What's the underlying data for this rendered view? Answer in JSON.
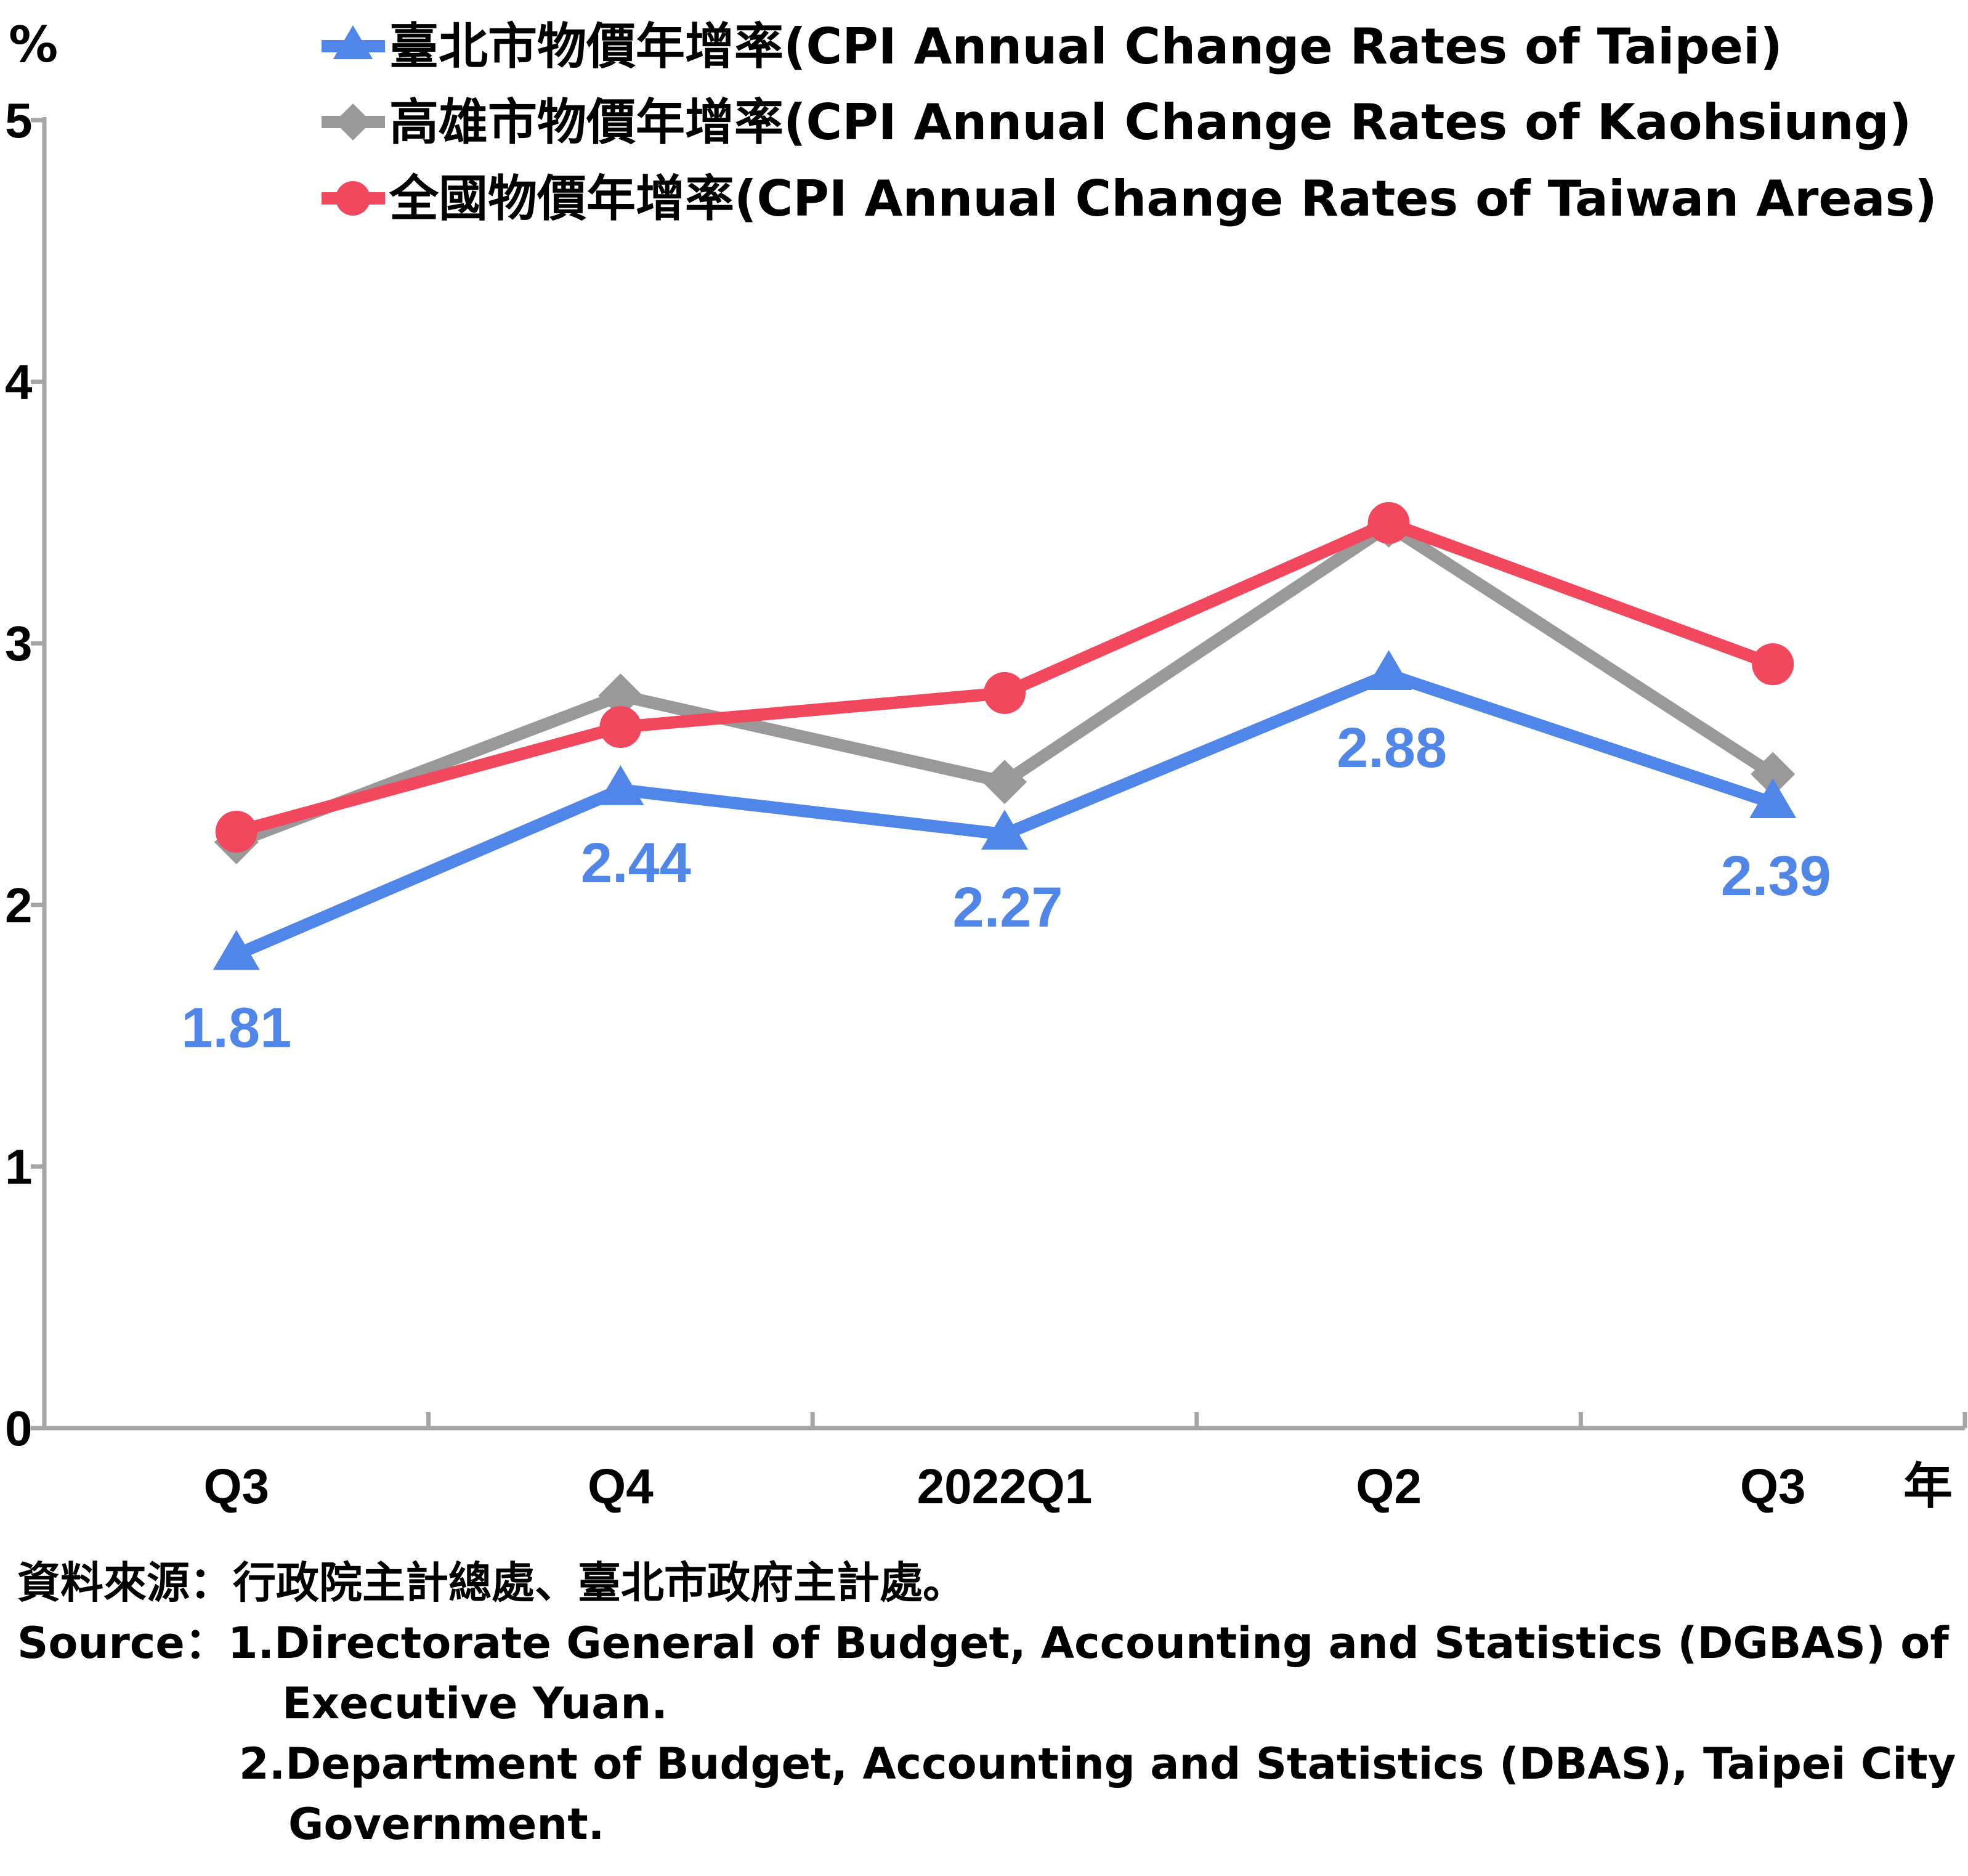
{
  "chart_data": {
    "type": "line",
    "y_unit": "%",
    "x_unit": "年",
    "categories": [
      "Q3",
      "Q4",
      "2022Q1",
      "Q2",
      "Q3"
    ],
    "ylim": [
      0,
      5
    ],
    "yticks": [
      "0",
      "1",
      "2",
      "3",
      "4",
      "5"
    ],
    "grid": false,
    "legend_position": "top",
    "series": [
      {
        "name": "臺北市物價年增率(CPI Annual Change Rates of Taipei)",
        "color": "#4f86e8",
        "marker": "triangle",
        "values": [
          1.81,
          2.44,
          2.27,
          2.88,
          2.39
        ],
        "labels": [
          "1.81",
          "2.44",
          "2.27",
          "2.88",
          "2.39"
        ]
      },
      {
        "name": "高雄市物價年增率(CPI Annual Change Rates of Kaohsiung)",
        "color": "#999999",
        "marker": "diamond",
        "values": [
          2.24,
          2.8,
          2.47,
          3.45,
          2.5
        ]
      },
      {
        "name": "全國物價年增率(CPI Annual Change Rates of Taiwan Areas)",
        "color": "#f2485d",
        "marker": "circle",
        "values": [
          2.28,
          2.68,
          2.81,
          3.46,
          2.92
        ]
      }
    ]
  },
  "source": {
    "zh": "資料來源：行政院主計總處、臺北市政府主計處。",
    "en_prefix": "Source：",
    "en_line1": "1.Directorate General of Budget, Accounting and Statistics (DGBAS) of",
    "en_line1b": "Executive Yuan.",
    "en_line2": "2.Department of Budget, Accounting and Statistics (DBAS), Taipei City",
    "en_line2b": "Government."
  }
}
